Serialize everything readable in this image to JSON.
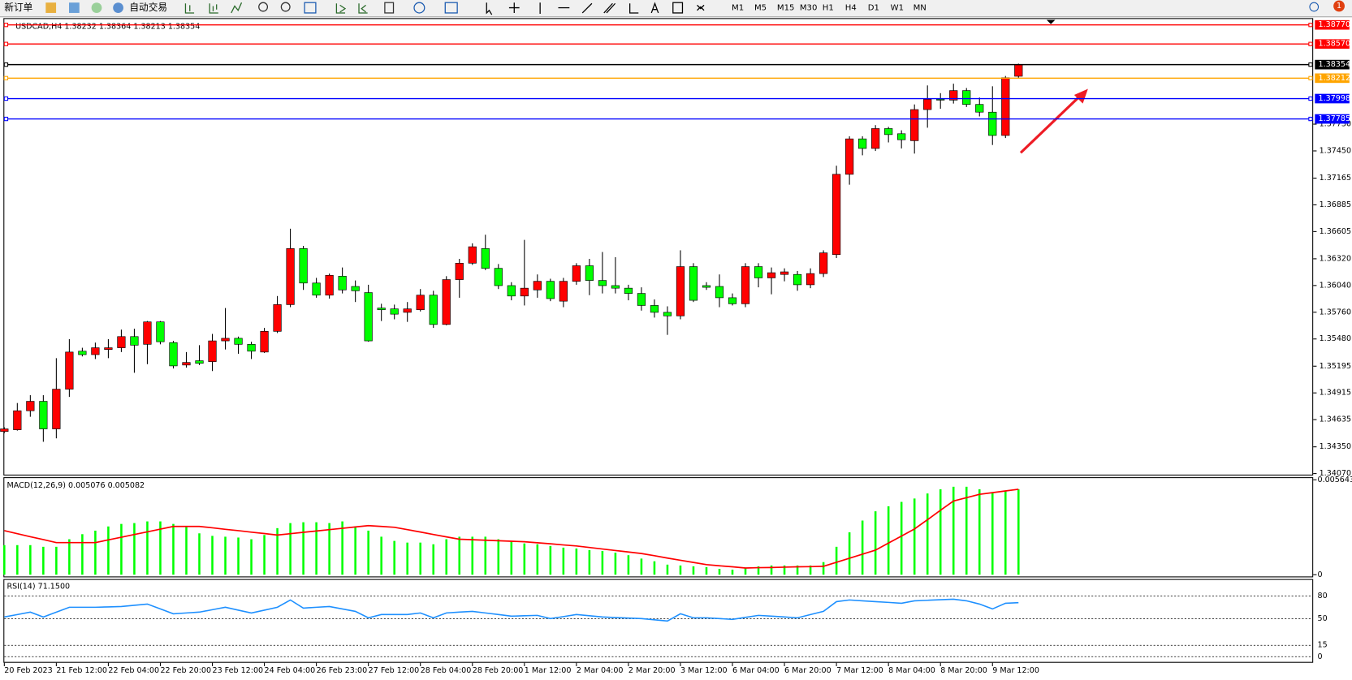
{
  "toolbar": {
    "new_order": "新订单",
    "auto_trading": "自动交易",
    "timeframes": [
      "M1",
      "M5",
      "M15",
      "M30",
      "H1",
      "H4",
      "D1",
      "W1",
      "MN"
    ],
    "notification_count": 1
  },
  "chart_data": {
    "type": "candlestick",
    "title": "USDCAD,H4  1.38232 1.38364 1.38213 1.38354",
    "up_color": "#ff0000",
    "down_color": "#00ff00",
    "categories": [
      "20 Feb 2023",
      null,
      null,
      null,
      "21 Feb 12:00",
      null,
      null,
      null,
      "22 Feb 04:00",
      null,
      null,
      null,
      "22 Feb 20:00",
      null,
      null,
      null,
      "23 Feb 12:00",
      null,
      null,
      null,
      "24 Feb 04:00",
      null,
      null,
      null,
      "26 Feb 23:00",
      null,
      null,
      null,
      "27 Feb 12:00",
      null,
      null,
      null,
      "28 Feb 04:00",
      null,
      null,
      null,
      "28 Feb 20:00",
      null,
      null,
      null,
      "1 Mar 12:00",
      null,
      null,
      null,
      "2 Mar 04:00",
      null,
      null,
      null,
      "2 Mar 20:00",
      null,
      null,
      null,
      "3 Mar 12:00",
      null,
      null,
      null,
      "6 Mar 04:00",
      null,
      null,
      null,
      "6 Mar 20:00",
      null,
      null,
      null,
      "7 Mar 12:00",
      null,
      null,
      null,
      "8 Mar 04:00",
      null,
      null,
      null,
      "8 Mar 20:00",
      null,
      null,
      null,
      "9 Mar 12:00",
      null,
      null
    ],
    "open": [
      1.34511,
      1.34529,
      1.34728,
      1.34827,
      1.34538,
      1.34954,
      1.35352,
      1.35316,
      1.3537,
      1.35388,
      1.35505,
      1.35424,
      1.35659,
      1.35442,
      1.35207,
      1.35252,
      1.35243,
      1.3546,
      1.35487,
      1.35424,
      1.35343,
      1.3556,
      1.3584,
      1.36427,
      1.36066,
      1.35939,
      1.36138,
      1.3603,
      1.35966,
      1.35804,
      1.35795,
      1.35759,
      1.35786,
      1.35939,
      1.35632,
      1.36102,
      1.36274,
      1.36427,
      1.3622,
      1.36039,
      1.3593,
      1.35994,
      1.36084,
      1.35876,
      1.36084,
      1.36247,
      1.36093,
      1.36039,
      1.36012,
      1.35957,
      1.35831,
      1.35759,
      1.35722,
      1.36238,
      1.36039,
      1.3603,
      1.35912,
      1.35849,
      1.36238,
      1.3612,
      1.36156,
      1.36156,
      1.36048,
      1.36165,
      1.36364,
      1.37205,
      1.37576,
      1.37476,
      1.37684,
      1.3763,
      1.37557,
      1.37883,
      1.37991,
      1.37982,
      1.38082,
      1.37937,
      1.37856,
      1.37612,
      1.38232
    ],
    "high": [
      1.34556,
      1.34809,
      1.34891,
      1.34891,
      1.35279,
      1.35478,
      1.35388,
      1.35442,
      1.35478,
      1.35578,
      1.35587,
      1.35668,
      1.35668,
      1.3546,
      1.35343,
      1.35415,
      1.35533,
      1.35804,
      1.35505,
      1.35451,
      1.35596,
      1.3593,
      1.36635,
      1.36455,
      1.3612,
      1.36165,
      1.36229,
      1.36093,
      1.36048,
      1.35849,
      1.3584,
      1.35867,
      1.36003,
      1.35985,
      1.36138,
      1.36319,
      1.36482,
      1.36572,
      1.36265,
      1.36075,
      1.36518,
      1.36156,
      1.36111,
      1.3612,
      1.36274,
      1.36319,
      1.36391,
      1.36337,
      1.36048,
      1.36021,
      1.35894,
      1.35822,
      1.36409,
      1.36274,
      1.36075,
      1.36156,
      1.35957,
      1.36274,
      1.36274,
      1.36229,
      1.3622,
      1.36192,
      1.3622,
      1.36409,
      1.37295,
      1.37603,
      1.37603,
      1.3772,
      1.37702,
      1.37666,
      1.37937,
      1.38136,
      1.38055,
      1.38154,
      1.38109,
      1.38009,
      1.38127,
      1.38235,
      1.38364
    ],
    "low": [
      1.34493,
      1.3452,
      1.34665,
      1.34403,
      1.34439,
      1.34873,
      1.35297,
      1.3527,
      1.35279,
      1.35343,
      1.35126,
      1.35216,
      1.35424,
      1.35171,
      1.3518,
      1.35207,
      1.35144,
      1.3537,
      1.35325,
      1.3527,
      1.35334,
      1.35542,
      1.35813,
      1.35994,
      1.35912,
      1.35903,
      1.35957,
      1.35867,
      1.35451,
      1.35668,
      1.35686,
      1.35659,
      1.35768,
      1.35596,
      1.35623,
      1.35912,
      1.36256,
      1.36201,
      1.36003,
      1.35885,
      1.35831,
      1.35912,
      1.35876,
      1.35813,
      1.36048,
      1.35939,
      1.35957,
      1.35957,
      1.35885,
      1.35777,
      1.35704,
      1.35523,
      1.35686,
      1.35867,
      1.35994,
      1.35813,
      1.35831,
      1.35813,
      1.36021,
      1.35948,
      1.36084,
      1.35985,
      1.36012,
      1.36129,
      1.36328,
      1.37096,
      1.37404,
      1.37449,
      1.37539,
      1.37476,
      1.37422,
      1.37693,
      1.37892,
      1.37946,
      1.3791,
      1.37811,
      1.37512,
      1.37585,
      1.38213
    ],
    "close": [
      1.34538,
      1.34728,
      1.34827,
      1.34538,
      1.34954,
      1.35343,
      1.35316,
      1.35388,
      1.35388,
      1.35505,
      1.35415,
      1.35659,
      1.35451,
      1.35198,
      1.35234,
      1.35225,
      1.3546,
      1.35487,
      1.35424,
      1.35352,
      1.3556,
      1.3584,
      1.36427,
      1.36066,
      1.35939,
      1.36147,
      1.35994,
      1.35985,
      1.3546,
      1.35786,
      1.3574,
      1.35795,
      1.35939,
      1.35632,
      1.36102,
      1.36274,
      1.36446,
      1.3622,
      1.36039,
      1.3593,
      1.36012,
      1.36084,
      1.35903,
      1.36084,
      1.36247,
      1.36093,
      1.36039,
      1.36012,
      1.35957,
      1.35831,
      1.35759,
      1.35722,
      1.36238,
      1.35885,
      1.36021,
      1.35912,
      1.35849,
      1.36238,
      1.3612,
      1.36174,
      1.36183,
      1.36048,
      1.36165,
      1.36382,
      1.37205,
      1.37576,
      1.37476,
      1.37684,
      1.37621,
      1.37567,
      1.37883,
      1.37991,
      1.37982,
      1.38082,
      1.37937,
      1.37856,
      1.37612,
      1.38217,
      1.38354
    ],
    "ylim": [
      1.34059,
      1.38832
    ],
    "yticks": [
      {
        "value": 1.3407,
        "label": "1.34070"
      },
      {
        "value": 1.3435,
        "label": "1.34350"
      },
      {
        "value": 1.34635,
        "label": "1.34635"
      },
      {
        "value": 1.34915,
        "label": "1.34915"
      },
      {
        "value": 1.35195,
        "label": "1.35195"
      },
      {
        "value": 1.3548,
        "label": "1.35480"
      },
      {
        "value": 1.3576,
        "label": "1.35760"
      },
      {
        "value": 1.3604,
        "label": "1.36040"
      },
      {
        "value": 1.3632,
        "label": "1.36320"
      },
      {
        "value": 1.36605,
        "label": "1.36605"
      },
      {
        "value": 1.36885,
        "label": "1.36885"
      },
      {
        "value": 1.37165,
        "label": "1.37165"
      },
      {
        "value": 1.3745,
        "label": "1.37450"
      },
      {
        "value": 1.3773,
        "label": "1.37730"
      }
    ],
    "hlines": [
      {
        "value": 1.3877,
        "label": "1.38770",
        "color": "#ff0000"
      },
      {
        "value": 1.3857,
        "label": "1.38570",
        "color": "#ff0000"
      },
      {
        "value": 1.38354,
        "label": "1.38354",
        "color": "#000000"
      },
      {
        "value": 1.38212,
        "label": "1.38212",
        "color": "#ffa500"
      },
      {
        "value": 1.37998,
        "label": "1.37998",
        "color": "#0000ff"
      },
      {
        "value": 1.37785,
        "label": "1.37785",
        "color": "#0000ff"
      }
    ],
    "macd": {
      "label": "MACD(12,26,9) 0.005076 0.005082",
      "color": "#00ff00",
      "signal_color": "#ff0000",
      "ylim": [
        0,
        0.005643
      ],
      "yticks": [
        0,
        0.005643
      ],
      "histogram": [
        0.00176,
        0.00176,
        0.00176,
        0.00166,
        0.00166,
        0.00211,
        0.00241,
        0.00262,
        0.00287,
        0.00302,
        0.00307,
        0.00317,
        0.00317,
        0.00302,
        0.00287,
        0.00246,
        0.00231,
        0.00226,
        0.00221,
        0.00211,
        0.00236,
        0.00277,
        0.00307,
        0.00312,
        0.00312,
        0.00307,
        0.00317,
        0.00287,
        0.00262,
        0.00226,
        0.00201,
        0.00191,
        0.00191,
        0.00181,
        0.00211,
        0.00226,
        0.00226,
        0.00226,
        0.00211,
        0.00201,
        0.00186,
        0.00181,
        0.00171,
        0.00161,
        0.00156,
        0.00146,
        0.00141,
        0.00131,
        0.00116,
        0.00096,
        0.0008,
        0.0006,
        0.00055,
        0.0005,
        0.00045,
        0.00035,
        0.0003,
        0.0004,
        0.0005,
        0.00055,
        0.00055,
        0.00055,
        0.00055,
        0.00075,
        0.00166,
        0.00252,
        0.00322,
        0.00377,
        0.00407,
        0.00433,
        0.00453,
        0.00483,
        0.00508,
        0.00523,
        0.00523,
        0.00508,
        0.00488,
        0.00498,
        0.005076
      ],
      "signal": [
        0.00262,
        0.00244,
        0.00226,
        0.00209,
        0.00191,
        0.00191,
        0.00191,
        0.00191,
        0.00207,
        0.00223,
        0.00239,
        0.00255,
        0.00271,
        0.00287,
        0.00287,
        0.00287,
        0.00279,
        0.0027,
        0.00262,
        0.00253,
        0.00245,
        0.00236,
        0.00244,
        0.00252,
        0.0026,
        0.00268,
        0.00276,
        0.00284,
        0.00292,
        0.00287,
        0.00282,
        0.00268,
        0.00254,
        0.00239,
        0.00225,
        0.00211,
        0.00208,
        0.00205,
        0.00202,
        0.00199,
        0.00196,
        0.0019,
        0.00184,
        0.00177,
        0.00171,
        0.00162,
        0.00153,
        0.00144,
        0.00135,
        0.00126,
        0.00113,
        0.00099,
        0.00086,
        0.00073,
        0.0006,
        0.00053,
        0.00047,
        0.0004,
        0.00042,
        0.00043,
        0.00045,
        0.00047,
        0.00048,
        0.0005,
        0.00074,
        0.00098,
        0.00122,
        0.00146,
        0.00188,
        0.0023,
        0.00272,
        0.00327,
        0.00383,
        0.00438,
        0.00458,
        0.00478,
        0.00488,
        0.00498,
        0.005082
      ]
    },
    "rsi": {
      "label": "RSI(14) 71.1500",
      "color": "#1e90ff",
      "ylim": [
        0,
        100
      ],
      "yticks": [
        0,
        15,
        50,
        80
      ],
      "values": [
        52.3,
        55.5,
        58.7,
        52.3,
        58.7,
        65.1,
        65.1,
        65.1,
        65.6,
        66.1,
        67.7,
        69.3,
        62.9,
        56.5,
        57.6,
        58.7,
        61.9,
        65.1,
        61.3,
        57.6,
        61.3,
        65.1,
        74.7,
        64.0,
        65.1,
        66.1,
        62.9,
        59.7,
        51.2,
        55.5,
        55.5,
        55.5,
        57.6,
        51.2,
        57.6,
        58.7,
        59.7,
        57.6,
        55.5,
        53.4,
        53.9,
        54.4,
        50.2,
        52.8,
        55.5,
        53.9,
        52.3,
        51.5,
        50.9,
        50.2,
        48.6,
        47.0,
        56.5,
        51.2,
        51.2,
        50.2,
        49.1,
        51.8,
        54.4,
        53.4,
        52.3,
        51.2,
        55.5,
        59.7,
        72.5,
        74.7,
        73.6,
        72.5,
        71.5,
        70.4,
        73.6,
        74.3,
        75.0,
        75.7,
        73.6,
        69.3,
        62.9,
        70.4,
        71.15
      ]
    }
  }
}
